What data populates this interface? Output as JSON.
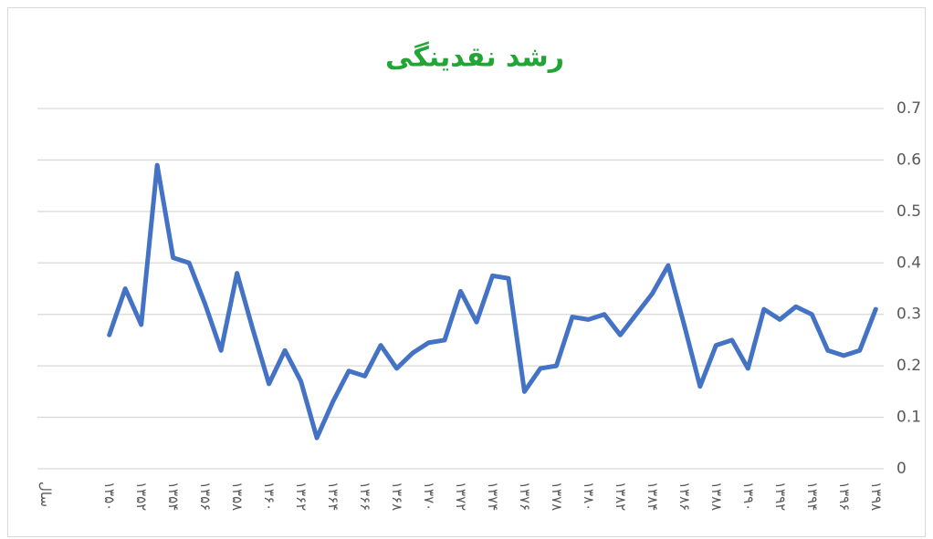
{
  "chart_data": {
    "type": "line",
    "title": "رشد نقدینگی",
    "categories": [
      "سال",
      null,
      null,
      null,
      "۱۳۵۰",
      null,
      "۱۳۵۲",
      null,
      "۱۳۵۴",
      null,
      "۱۳۵۶",
      null,
      "۱۳۵۸",
      null,
      "۱۳۶۰",
      null,
      "۱۳۶۲",
      null,
      "۱۳۶۴",
      null,
      "۱۳۶۶",
      null,
      "۱۳۶۸",
      null,
      "۱۳۷۰",
      null,
      "۱۳۷۲",
      null,
      "۱۳۷۴",
      null,
      "۱۳۷۶",
      null,
      "۱۳۷۸",
      null,
      "۱۳۸۰",
      null,
      "۱۳۸۲",
      null,
      "۱۳۸۴",
      null,
      "۱۳۸۶",
      null,
      "۱۳۸۸",
      null,
      "۱۳۹۰",
      null,
      "۱۳۹۲",
      null,
      "۱۳۹۴",
      null,
      "۱۳۹۶",
      null,
      "۱۳۹۸"
    ],
    "series": [
      {
        "color": "#4472c4",
        "values": [
          null,
          null,
          null,
          null,
          0.26,
          0.35,
          0.28,
          0.59,
          0.41,
          0.4,
          0.32,
          0.23,
          0.38,
          0.27,
          0.165,
          0.23,
          0.17,
          0.06,
          0.13,
          0.19,
          0.18,
          0.24,
          0.195,
          0.225,
          0.245,
          0.25,
          0.345,
          0.285,
          0.375,
          0.37,
          0.15,
          0.195,
          0.2,
          0.295,
          0.29,
          0.3,
          0.26,
          0.3,
          0.34,
          0.395,
          0.28,
          0.16,
          0.24,
          0.25,
          0.195,
          0.31,
          0.29,
          0.315,
          0.3,
          0.23,
          0.22,
          0.23,
          0.31
        ]
      }
    ],
    "ylim": [
      0,
      0.7
    ],
    "yticks": [
      0,
      0.1,
      0.2,
      0.3,
      0.4,
      0.5,
      0.6,
      0.7
    ],
    "grid": true
  }
}
